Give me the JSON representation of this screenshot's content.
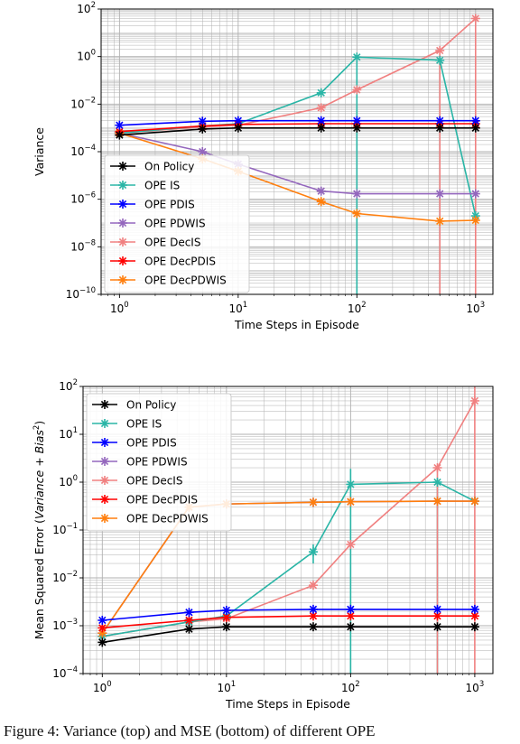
{
  "caption": "Figure 4: Variance (top) and MSE (bottom) of different OPE",
  "chart_data": [
    {
      "type": "line",
      "ylabel": "Variance",
      "xlabel": "Time Steps in Episode",
      "xscale": "log",
      "yscale": "log",
      "xlim": [
        0.7,
        1400
      ],
      "ylim": [
        1e-10,
        100
      ],
      "x_ticks": [
        1,
        10,
        100,
        1000
      ],
      "x_tick_labels": [
        "10^0",
        "10^1",
        "10^2",
        "10^3"
      ],
      "y_ticks": [
        1e-10,
        1e-08,
        1e-06,
        0.0001,
        0.01,
        1,
        100
      ],
      "y_tick_labels": [
        "10^-10",
        "10^-8",
        "10^-6",
        "10^-4",
        "10^-2",
        "10^0",
        "10^2"
      ],
      "grid": true,
      "legend_position": "lower-left",
      "x": [
        1,
        5,
        10,
        50,
        100,
        500,
        1000
      ],
      "series": [
        {
          "name": "On Policy",
          "color": "#000000",
          "values": [
            0.0005,
            0.0009,
            0.001,
            0.001,
            0.001,
            0.001,
            0.001
          ]
        },
        {
          "name": "OPE IS",
          "color": "#2ab5a6",
          "values": [
            0.0006,
            0.0012,
            0.0015,
            0.03,
            0.95,
            0.7,
            2e-07
          ]
        },
        {
          "name": "OPE PDIS",
          "color": "#0000ff",
          "values": [
            0.0013,
            0.0019,
            0.002,
            0.002,
            0.002,
            0.002,
            0.002
          ]
        },
        {
          "name": "OPE PDWIS",
          "color": "#9467bd",
          "values": [
            0.0006,
            0.0001,
            3e-05,
            2.2e-06,
            1.7e-06,
            1.7e-06,
            1.7e-06
          ]
        },
        {
          "name": "OPE DecIS",
          "color": "#f08080",
          "values": [
            0.0006,
            0.0011,
            0.0013,
            0.007,
            0.04,
            1.8,
            40
          ]
        },
        {
          "name": "OPE DecPDIS",
          "color": "#ff0000",
          "values": [
            0.0007,
            0.0012,
            0.0014,
            0.0015,
            0.0015,
            0.0015,
            0.0015
          ]
        },
        {
          "name": "OPE DecPDWIS",
          "color": "#ff7f0e",
          "values": [
            0.0006,
            5e-05,
            1.5e-05,
            8e-07,
            2.5e-07,
            1.2e-07,
            1.3e-07
          ]
        }
      ]
    },
    {
      "type": "line",
      "ylabel": "Mean Squared Error (Variance + Bias^2)",
      "xlabel": "Time Steps in Episode",
      "xscale": "log",
      "yscale": "log",
      "xlim": [
        0.7,
        1400
      ],
      "ylim": [
        0.0001,
        100
      ],
      "x_ticks": [
        1,
        10,
        100,
        1000
      ],
      "x_tick_labels": [
        "10^0",
        "10^1",
        "10^2",
        "10^3"
      ],
      "y_ticks": [
        0.0001,
        0.001,
        0.01,
        0.1,
        1,
        10,
        100
      ],
      "y_tick_labels": [
        "10^-4",
        "10^-3",
        "10^-2",
        "10^-1",
        "10^0",
        "10^1",
        "10^2"
      ],
      "grid": true,
      "legend_position": "upper-left",
      "x": [
        1,
        5,
        10,
        50,
        100,
        500,
        1000
      ],
      "series": [
        {
          "name": "On Policy",
          "color": "#000000",
          "values": [
            0.00045,
            0.00085,
            0.00095,
            0.00095,
            0.00095,
            0.00095,
            0.00095
          ]
        },
        {
          "name": "OPE IS",
          "color": "#2ab5a6",
          "values": [
            0.0006,
            0.0012,
            0.0016,
            0.035,
            0.9,
            1.0,
            0.4
          ]
        },
        {
          "name": "OPE PDIS",
          "color": "#0000ff",
          "values": [
            0.0013,
            0.0019,
            0.0021,
            0.0022,
            0.0022,
            0.0022,
            0.0022
          ]
        },
        {
          "name": "OPE PDWIS",
          "color": "#9467bd",
          "values": [
            0.0007,
            0.3,
            0.35,
            0.38,
            0.39,
            0.4,
            0.4
          ]
        },
        {
          "name": "OPE DecIS",
          "color": "#f08080",
          "values": [
            0.0006,
            0.0012,
            0.0014,
            0.007,
            0.05,
            2.0,
            50
          ]
        },
        {
          "name": "OPE DecPDIS",
          "color": "#ff0000",
          "values": [
            0.0009,
            0.0013,
            0.0015,
            0.0016,
            0.0016,
            0.0016,
            0.0016
          ]
        },
        {
          "name": "OPE DecPDWIS",
          "color": "#ff7f0e",
          "values": [
            0.0007,
            0.3,
            0.35,
            0.38,
            0.39,
            0.4,
            0.4
          ]
        }
      ]
    }
  ]
}
